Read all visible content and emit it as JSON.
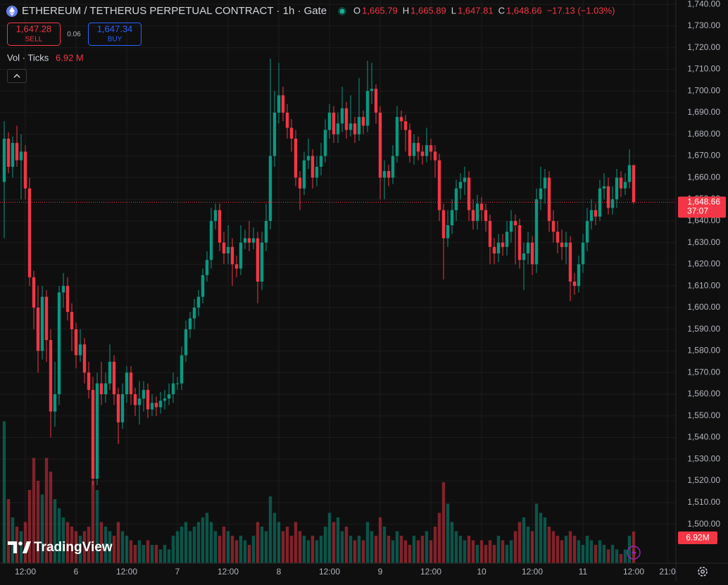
{
  "chart_data": {
    "type": "candlestick",
    "title": "ETHEREUM / TETHERUS PERPETUAL CONTRACT · 1h · Gate",
    "ohlc_legend": [
      {
        "label": "O",
        "value": "1,665.79"
      },
      {
        "label": "H",
        "value": "1,665.89"
      },
      {
        "label": "L",
        "value": "1,647.81"
      },
      {
        "label": "C",
        "value": "1,648.66"
      }
    ],
    "change": "−17.13 (−1.03%)",
    "sell": {
      "price": "1,647.28",
      "label": "SELL"
    },
    "spread": "0.06",
    "buy": {
      "price": "1,647.34",
      "label": "BUY"
    },
    "volume_legend": {
      "label": "Vol · Ticks",
      "value": "6.92 M"
    },
    "last_price_label": "1,648.66",
    "countdown": "37:07",
    "volume_badge": "6.92M",
    "logo": "TradingView",
    "up_color": "#089981",
    "down_color": "#f23645",
    "grid": true,
    "xlim": [
      -1,
      159
    ],
    "xticks": [
      {
        "value": 5,
        "label": "12:00"
      },
      {
        "value": 17,
        "label": "6"
      },
      {
        "value": 29,
        "label": "12:00"
      },
      {
        "value": 41,
        "label": "7"
      },
      {
        "value": 53,
        "label": "12:00"
      },
      {
        "value": 65,
        "label": "8"
      },
      {
        "value": 77,
        "label": "12:00"
      },
      {
        "value": 89,
        "label": "9"
      },
      {
        "value": 101,
        "label": "12:00"
      },
      {
        "value": 113,
        "label": "10"
      },
      {
        "value": 125,
        "label": "12:00"
      },
      {
        "value": 137,
        "label": "11"
      },
      {
        "value": 149,
        "label": "12:00"
      },
      {
        "value": 157,
        "label": "21:0"
      }
    ],
    "ylim": [
      1482,
      1742
    ],
    "yticks": [
      {
        "value": 1740,
        "label": "1,740.00"
      },
      {
        "value": 1730,
        "label": "1,730.00"
      },
      {
        "value": 1720,
        "label": "1,720.00"
      },
      {
        "value": 1710,
        "label": "1,710.00"
      },
      {
        "value": 1700,
        "label": "1,700.00"
      },
      {
        "value": 1690,
        "label": "1,690.00"
      },
      {
        "value": 1680,
        "label": "1,680.00"
      },
      {
        "value": 1670,
        "label": "1,670.00"
      },
      {
        "value": 1660,
        "label": "1,660.00"
      },
      {
        "value": 1650,
        "label": "1,650.00"
      },
      {
        "value": 1640,
        "label": "1,640.00"
      },
      {
        "value": 1630,
        "label": "1,630.00"
      },
      {
        "value": 1620,
        "label": "1,620.00"
      },
      {
        "value": 1610,
        "label": "1,610.00"
      },
      {
        "value": 1600,
        "label": "1,600.00"
      },
      {
        "value": 1590,
        "label": "1,590.00"
      },
      {
        "value": 1580,
        "label": "1,580.00"
      },
      {
        "value": 1570,
        "label": "1,570.00"
      },
      {
        "value": 1560,
        "label": "1,560.00"
      },
      {
        "value": 1550,
        "label": "1,550.00"
      },
      {
        "value": 1540,
        "label": "1,540.00"
      },
      {
        "value": 1530,
        "label": "1,530.00"
      },
      {
        "value": 1520,
        "label": "1,520.00"
      },
      {
        "value": 1510,
        "label": "1,510.00"
      },
      {
        "value": 1500,
        "label": "1,500.00"
      }
    ],
    "open": [
      1658,
      1678,
      1665,
      1676,
      1668,
      1672,
      1655,
      1614,
      1600,
      1580,
      1605,
      1585,
      1552,
      1560,
      1607,
      1610,
      1598,
      1590,
      1578,
      1583,
      1570,
      1562,
      1521,
      1565,
      1560,
      1565,
      1575,
      1560,
      1547,
      1560,
      1570,
      1560,
      1555,
      1558,
      1562,
      1553,
      1556,
      1554,
      1557,
      1558,
      1560,
      1565,
      1565,
      1578,
      1590,
      1595,
      1600,
      1605,
      1615,
      1622,
      1640,
      1645,
      1630,
      1625,
      1628,
      1620,
      1618,
      1630,
      1632,
      1630,
      1632,
      1612,
      1630,
      1640,
      1670,
      1690,
      1698,
      1690,
      1683,
      1678,
      1660,
      1655,
      1668,
      1670,
      1660,
      1665,
      1670,
      1682,
      1690,
      1680,
      1685,
      1692,
      1682,
      1685,
      1680,
      1688,
      1684,
      1700,
      1701,
      1690,
      1660,
      1663,
      1660,
      1670,
      1688,
      1686,
      1682,
      1670,
      1676,
      1672,
      1670,
      1675,
      1672,
      1668,
      1645,
      1632,
      1638,
      1645,
      1655,
      1658,
      1660,
      1645,
      1640,
      1648,
      1645,
      1640,
      1628,
      1625,
      1630,
      1628,
      1635,
      1640,
      1638,
      1622,
      1625,
      1630,
      1620,
      1650,
      1655,
      1660,
      1640,
      1635,
      1630,
      1628,
      1630,
      1612,
      1610,
      1620,
      1630,
      1640,
      1645,
      1642,
      1655,
      1656,
      1646,
      1650,
      1660,
      1655,
      1658,
      1665.79
    ],
    "high": [
      1686,
      1681,
      1679,
      1684,
      1680,
      1675,
      1660,
      1617,
      1610,
      1610,
      1608,
      1590,
      1575,
      1610,
      1616,
      1614,
      1602,
      1593,
      1590,
      1586,
      1575,
      1568,
      1570,
      1575,
      1570,
      1583,
      1578,
      1563,
      1565,
      1573,
      1573,
      1563,
      1566,
      1566,
      1565,
      1560,
      1559,
      1561,
      1562,
      1565,
      1570,
      1568,
      1582,
      1594,
      1598,
      1604,
      1608,
      1618,
      1626,
      1646,
      1648,
      1648,
      1635,
      1638,
      1632,
      1624,
      1638,
      1636,
      1640,
      1637,
      1635,
      1635,
      1648,
      1715,
      1700,
      1713,
      1702,
      1694,
      1687,
      1682,
      1663,
      1672,
      1678,
      1673,
      1670,
      1676,
      1687,
      1694,
      1693,
      1690,
      1702,
      1695,
      1698,
      1688,
      1706,
      1691,
      1714,
      1713,
      1703,
      1693,
      1668,
      1666,
      1675,
      1693,
      1691,
      1689,
      1685,
      1680,
      1679,
      1675,
      1683,
      1678,
      1675,
      1671,
      1648,
      1645,
      1650,
      1659,
      1662,
      1665,
      1663,
      1650,
      1652,
      1651,
      1648,
      1643,
      1632,
      1634,
      1634,
      1640,
      1645,
      1643,
      1641,
      1630,
      1635,
      1633,
      1655,
      1665,
      1664,
      1663,
      1645,
      1640,
      1636,
      1635,
      1633,
      1616,
      1624,
      1634,
      1646,
      1650,
      1648,
      1659,
      1662,
      1660,
      1656,
      1664,
      1663,
      1662,
      1673,
      1665.89
    ],
    "low": [
      1632,
      1662,
      1660,
      1665,
      1650,
      1650,
      1610,
      1590,
      1570,
      1576,
      1575,
      1540,
      1545,
      1555,
      1600,
      1594,
      1580,
      1572,
      1575,
      1565,
      1558,
      1518,
      1518,
      1555,
      1556,
      1562,
      1555,
      1537,
      1544,
      1556,
      1555,
      1550,
      1546,
      1552,
      1549,
      1550,
      1550,
      1551,
      1553,
      1555,
      1556,
      1562,
      1562,
      1575,
      1586,
      1590,
      1596,
      1602,
      1612,
      1618,
      1636,
      1626,
      1620,
      1620,
      1610,
      1614,
      1615,
      1627,
      1626,
      1627,
      1602,
      1608,
      1626,
      1636,
      1665,
      1685,
      1686,
      1678,
      1672,
      1656,
      1645,
      1652,
      1664,
      1655,
      1656,
      1661,
      1667,
      1678,
      1676,
      1676,
      1681,
      1678,
      1679,
      1676,
      1677,
      1680,
      1681,
      1694,
      1685,
      1650,
      1650,
      1656,
      1657,
      1667,
      1682,
      1672,
      1667,
      1666,
      1668,
      1666,
      1667,
      1668,
      1660,
      1640,
      1613,
      1628,
      1634,
      1640,
      1650,
      1652,
      1640,
      1636,
      1636,
      1640,
      1635,
      1620,
      1620,
      1621,
      1624,
      1624,
      1630,
      1620,
      1618,
      1608,
      1620,
      1615,
      1616,
      1645,
      1648,
      1635,
      1630,
      1625,
      1622,
      1620,
      1603,
      1606,
      1607,
      1616,
      1626,
      1636,
      1638,
      1640,
      1650,
      1643,
      1643,
      1646,
      1651,
      1652,
      1655,
      1647.81
    ],
    "close": [
      1678,
      1665,
      1676,
      1668,
      1672,
      1655,
      1614,
      1600,
      1580,
      1605,
      1585,
      1552,
      1560,
      1607,
      1610,
      1598,
      1590,
      1578,
      1583,
      1570,
      1562,
      1521,
      1565,
      1560,
      1565,
      1575,
      1560,
      1547,
      1560,
      1570,
      1560,
      1555,
      1558,
      1562,
      1553,
      1556,
      1554,
      1557,
      1558,
      1560,
      1565,
      1565,
      1578,
      1590,
      1595,
      1600,
      1605,
      1615,
      1622,
      1640,
      1645,
      1630,
      1625,
      1628,
      1620,
      1618,
      1630,
      1632,
      1630,
      1632,
      1612,
      1630,
      1640,
      1670,
      1690,
      1698,
      1690,
      1683,
      1678,
      1660,
      1655,
      1668,
      1670,
      1660,
      1665,
      1670,
      1682,
      1690,
      1680,
      1685,
      1692,
      1682,
      1685,
      1680,
      1688,
      1684,
      1700,
      1701,
      1690,
      1660,
      1663,
      1660,
      1670,
      1688,
      1686,
      1682,
      1670,
      1676,
      1672,
      1670,
      1675,
      1672,
      1668,
      1645,
      1632,
      1638,
      1645,
      1655,
      1658,
      1660,
      1645,
      1640,
      1648,
      1645,
      1640,
      1628,
      1625,
      1630,
      1628,
      1635,
      1640,
      1638,
      1622,
      1625,
      1630,
      1620,
      1650,
      1655,
      1660,
      1640,
      1635,
      1630,
      1628,
      1630,
      1612,
      1610,
      1620,
      1630,
      1640,
      1645,
      1642,
      1655,
      1656,
      1646,
      1650,
      1660,
      1655,
      1658,
      1665.79,
      1648.66
    ],
    "volume": [
      31,
      14,
      10,
      8,
      7,
      9,
      16,
      23,
      18,
      15,
      23,
      20,
      14,
      12,
      10,
      9,
      8,
      7,
      6,
      7,
      8,
      18,
      16,
      9,
      8,
      7,
      6,
      9,
      7,
      6,
      5,
      4,
      5,
      4,
      5,
      4,
      4,
      3,
      4,
      3,
      6,
      7,
      8,
      9,
      7,
      8,
      9,
      10,
      11,
      9,
      7,
      6,
      8,
      7,
      6,
      5,
      6,
      5,
      4,
      6,
      9,
      8,
      7,
      14.6,
      11,
      9,
      7,
      8,
      6,
      9,
      7,
      6,
      5,
      6,
      5,
      6,
      8,
      11,
      9,
      10,
      7,
      8,
      6,
      5,
      6,
      5,
      9,
      7,
      6,
      10,
      8,
      6,
      5,
      7,
      6,
      5,
      4,
      6,
      5,
      6,
      7,
      5,
      8,
      11,
      17.7,
      13,
      9,
      7,
      6,
      5,
      6,
      5,
      4,
      5,
      4,
      5,
      4,
      6,
      5,
      4,
      5,
      7,
      9,
      10,
      8,
      7,
      13,
      11,
      10,
      8,
      7,
      6,
      5,
      6,
      7,
      6,
      5,
      4,
      6,
      5,
      4,
      5,
      4,
      3,
      4,
      3,
      2,
      3,
      6,
      6.92
    ]
  }
}
